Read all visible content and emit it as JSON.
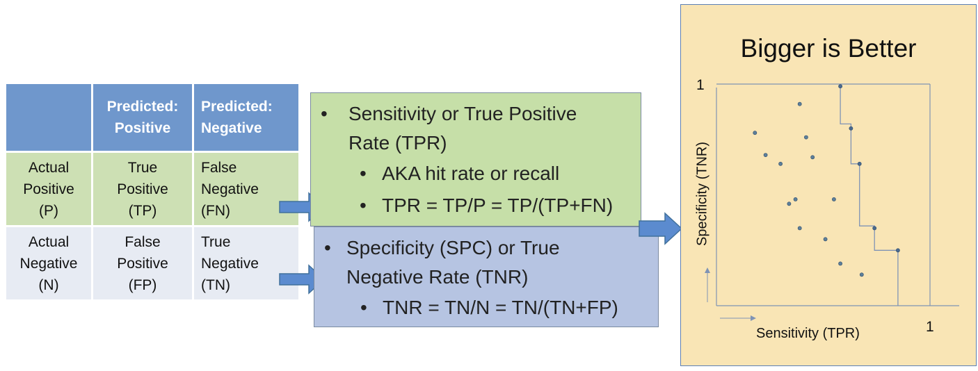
{
  "confusion_matrix": {
    "header": [
      "",
      [
        "Predicted:",
        "Positive"
      ],
      [
        "Predicted:",
        "Negative"
      ]
    ],
    "rows": [
      [
        [
          "Actual",
          "Positive",
          "(P)"
        ],
        [
          "True",
          "Positive",
          "(TP)"
        ],
        [
          "False",
          "Negative",
          "(FN)"
        ]
      ],
      [
        [
          "Actual",
          "Negative",
          "(N)"
        ],
        [
          "False",
          "Positive",
          "(FP)"
        ],
        [
          "True",
          "Negative",
          "(TN)"
        ]
      ]
    ],
    "colors": {
      "header": "#6f97cc",
      "positive_row": "#cde0b4",
      "negative_row": "#e7ebf3"
    }
  },
  "tpr_box": {
    "bullet": "•",
    "sub_bullet": "•",
    "title_line1": "Sensitivity or True Positive",
    "title_line2": "Rate (TPR)",
    "sub1": "AKA hit rate or recall",
    "sub2": "TPR = TP/P = TP/(TP+FN)",
    "color": "#c6dfa8"
  },
  "tnr_box": {
    "bullet": "•",
    "sub_bullet": "•",
    "title_line1": "Specificity (SPC) or True",
    "title_line2": "Negative Rate (TNR)",
    "sub1": "TNR = TN/N = TN/(TN+FP)",
    "color": "#b6c4e2"
  },
  "plot_panel": {
    "title": "Bigger is Better",
    "y_axis_label": "Specificity (TNR)",
    "x_axis_label": "Sensitivity (TPR)",
    "y_max_label": "1",
    "x_max_label": "1",
    "background": "#f9e5b5"
  },
  "arrow_color": "#5b8bcf",
  "chart_data": {
    "type": "scatter",
    "xlabel": "Sensitivity (TPR)",
    "ylabel": "Specificity (TNR)",
    "xlim": [
      0,
      1
    ],
    "ylim": [
      0,
      1
    ],
    "points": [
      {
        "x": 0.58,
        "y": 0.99,
        "frontier": true
      },
      {
        "x": 0.63,
        "y": 0.8,
        "frontier": true
      },
      {
        "x": 0.67,
        "y": 0.64,
        "frontier": true
      },
      {
        "x": 0.74,
        "y": 0.35,
        "frontier": true
      },
      {
        "x": 0.85,
        "y": 0.25,
        "frontier": true
      },
      {
        "x": 0.39,
        "y": 0.91,
        "frontier": false
      },
      {
        "x": 0.18,
        "y": 0.78,
        "frontier": false
      },
      {
        "x": 0.42,
        "y": 0.76,
        "frontier": false
      },
      {
        "x": 0.23,
        "y": 0.68,
        "frontier": false
      },
      {
        "x": 0.3,
        "y": 0.64,
        "frontier": false
      },
      {
        "x": 0.45,
        "y": 0.67,
        "frontier": false
      },
      {
        "x": 0.37,
        "y": 0.48,
        "frontier": false
      },
      {
        "x": 0.34,
        "y": 0.46,
        "frontier": false
      },
      {
        "x": 0.55,
        "y": 0.48,
        "frontier": false
      },
      {
        "x": 0.39,
        "y": 0.35,
        "frontier": false
      },
      {
        "x": 0.51,
        "y": 0.3,
        "frontier": false
      },
      {
        "x": 0.58,
        "y": 0.19,
        "frontier": false
      },
      {
        "x": 0.68,
        "y": 0.14,
        "frontier": false
      }
    ],
    "frontier_steps": [
      {
        "x": 0.58,
        "y": 0.99
      },
      {
        "x": 0.58,
        "y": 0.82
      },
      {
        "x": 0.63,
        "y": 0.82
      },
      {
        "x": 0.63,
        "y": 0.64
      },
      {
        "x": 0.67,
        "y": 0.64
      },
      {
        "x": 0.67,
        "y": 0.36
      },
      {
        "x": 0.74,
        "y": 0.36
      },
      {
        "x": 0.74,
        "y": 0.25
      },
      {
        "x": 0.85,
        "y": 0.25
      },
      {
        "x": 0.85,
        "y": 0.0
      }
    ]
  }
}
